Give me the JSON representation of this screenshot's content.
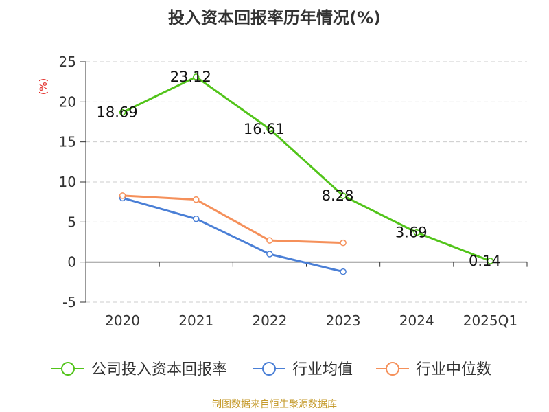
{
  "chart_data": {
    "type": "line",
    "title": "投入资本回报率历年情况(%)",
    "ylabel": "(%)",
    "categories": [
      "2020",
      "2021",
      "2022",
      "2023",
      "2024",
      "2025Q1"
    ],
    "ylim": [
      -5,
      25
    ],
    "yticks": [
      -5,
      0,
      5,
      10,
      15,
      20,
      25
    ],
    "grid": true,
    "legend_position": "bottom",
    "series": [
      {
        "name": "公司投入资本回报率",
        "color": "#52c41a",
        "values": [
          18.69,
          23.12,
          16.61,
          8.28,
          3.69,
          0.14
        ],
        "labels": [
          "18.69",
          "23.12",
          "16.61",
          "8.28",
          "3.69",
          "0.14"
        ]
      },
      {
        "name": "行业均值",
        "color": "#4a7fd6",
        "values": [
          8.0,
          5.4,
          1.0,
          -1.2,
          null,
          null
        ]
      },
      {
        "name": "行业中位数",
        "color": "#f5905a",
        "values": [
          8.3,
          7.8,
          2.7,
          2.4,
          null,
          null
        ]
      }
    ]
  },
  "source": "制图数据来自恒生聚源数据库"
}
